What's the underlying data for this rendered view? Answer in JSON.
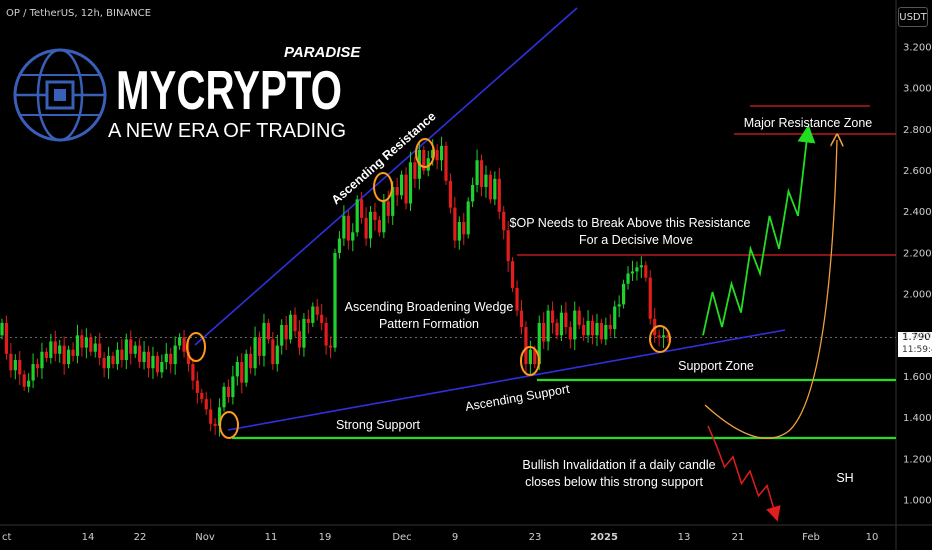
{
  "header": {
    "symbol_line": "OP / TetherUS, 12h, BINANCE"
  },
  "currency_button": "USDT",
  "price_tag": {
    "price": "1.790",
    "countdown": "11:59:47"
  },
  "logo": {
    "brand_top": "PARADISE",
    "brand_main": "MYCRYPTO",
    "tagline": "A NEW ERA OF TRADING"
  },
  "colors": {
    "up": "#1fd12f",
    "down": "#e11d1d",
    "trendline": "#3030e0",
    "support": "#22dd22",
    "resistance": "#dd1f1f",
    "marker": "#ff9a1a"
  },
  "annotations": {
    "ascending_resistance": "Ascending Resistance",
    "broadening_wedge_1": "Ascending Broadening Wedge",
    "broadening_wedge_2": "Pattern Formation",
    "op_break_1": "$OP Needs to Break Above this Resistance",
    "op_break_2": "For a Decisive Move",
    "major_resistance": "Major Resistance Zone",
    "support_zone": "Support Zone",
    "ascending_support": "Ascending Support",
    "strong_support": "Strong Support",
    "invalidation_1": "Bullish Invalidation if a daily candle",
    "invalidation_2": "closes below this strong support",
    "sh": "SH"
  },
  "chart_data": {
    "type": "candlestick",
    "symbol": "OP / TetherUS",
    "interval": "12h",
    "exchange": "BINANCE",
    "y_axis": {
      "unit": "USDT",
      "range": [
        0.92,
        3.3
      ],
      "ticks": [
        "1.000",
        "1.200",
        "1.400",
        "1.600",
        "1.800",
        "2.000",
        "2.200",
        "2.400",
        "2.600",
        "2.800",
        "3.000",
        "3.200"
      ]
    },
    "x_axis": {
      "ticks": [
        "ct",
        "14",
        "22",
        "Nov",
        "11",
        "19",
        "Dec",
        "9",
        "23",
        "2025",
        "13",
        "21",
        "Feb",
        "10"
      ]
    },
    "levels": {
      "major_resistance_zone": [
        2.8,
        2.92
      ],
      "decisive_resistance": 2.2,
      "support_zone": 1.58,
      "strong_support": 1.3,
      "last_price": 1.79
    },
    "candles_close": [
      1.86,
      1.71,
      1.63,
      1.68,
      1.61,
      1.55,
      1.58,
      1.66,
      1.64,
      1.72,
      1.69,
      1.77,
      1.71,
      1.75,
      1.66,
      1.73,
      1.7,
      1.8,
      1.74,
      1.79,
      1.72,
      1.76,
      1.69,
      1.64,
      1.7,
      1.66,
      1.73,
      1.68,
      1.78,
      1.71,
      1.75,
      1.67,
      1.72,
      1.64,
      1.7,
      1.62,
      1.67,
      1.71,
      1.66,
      1.75,
      1.79,
      1.72,
      1.66,
      1.58,
      1.52,
      1.49,
      1.44,
      1.37,
      1.36,
      1.45,
      1.55,
      1.5,
      1.6,
      1.67,
      1.57,
      1.71,
      1.64,
      1.79,
      1.7,
      1.86,
      1.78,
      1.66,
      1.75,
      1.85,
      1.78,
      1.9,
      1.82,
      1.74,
      1.88,
      1.86,
      1.94,
      1.9,
      1.86,
      1.75,
      1.74,
      2.2,
      2.27,
      2.38,
      2.26,
      2.3,
      2.46,
      2.37,
      2.27,
      2.4,
      2.36,
      2.3,
      2.45,
      2.38,
      2.52,
      2.48,
      2.58,
      2.44,
      2.64,
      2.56,
      2.7,
      2.6,
      2.66,
      2.7,
      2.65,
      2.72,
      2.55,
      2.42,
      2.26,
      2.35,
      2.29,
      2.45,
      2.53,
      2.65,
      2.52,
      2.58,
      2.46,
      2.56,
      2.4,
      2.31,
      2.16,
      2.03,
      1.92,
      1.84,
      1.66,
      1.73,
      1.66,
      1.86,
      1.77,
      1.92,
      1.86,
      1.8,
      1.91,
      1.84,
      1.78,
      1.92,
      1.85,
      1.8,
      1.87,
      1.8,
      1.86,
      1.78,
      1.85,
      1.83,
      1.94,
      1.95,
      2.05,
      2.1,
      2.11,
      2.13,
      2.14,
      2.08,
      1.88,
      1.8,
      1.79,
      1.8,
      1.79
    ],
    "projection_up": [
      [
        1.8,
        "13"
      ],
      [
        2.01,
        ""
      ],
      [
        1.84,
        ""
      ],
      [
        2.05,
        ""
      ],
      [
        1.91,
        ""
      ],
      [
        2.22,
        ""
      ],
      [
        2.1,
        ""
      ],
      [
        2.38,
        ""
      ],
      [
        2.22,
        ""
      ],
      [
        2.5,
        ""
      ],
      [
        2.38,
        ""
      ],
      [
        2.78,
        ""
      ]
    ],
    "projection_down": [
      1.27,
      1.16,
      1.21,
      1.08,
      1.14,
      1.02,
      1.07,
      0.93
    ]
  }
}
